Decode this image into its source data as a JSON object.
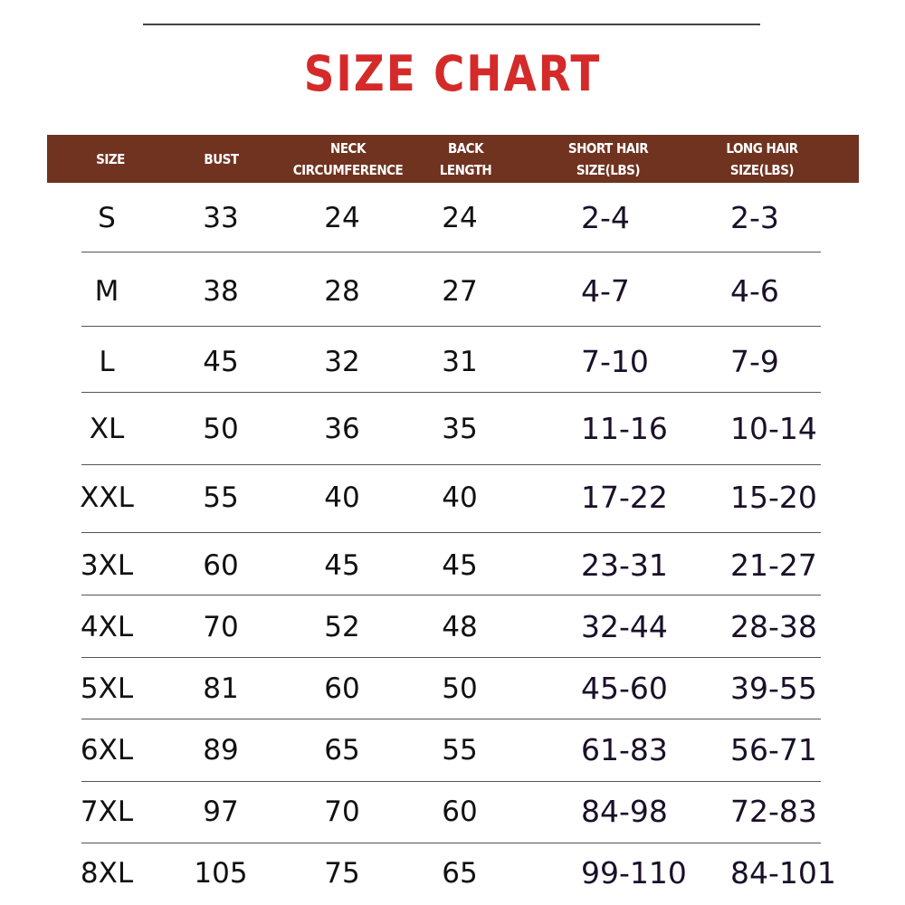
{
  "title": "SIZE CHART",
  "colors": {
    "title": "#d42a2a",
    "header_bg": "#6f3320"
  },
  "headers": [
    "SIZE",
    "BUST",
    "NECK\nCIRCUMFERENCE",
    "BACK\nLENGTH",
    "SHORT HAIR\nSIZE(LBS)",
    "LONG HAIR\nSIZE(LBS)"
  ],
  "rows": [
    [
      "S",
      "33",
      "24",
      "24",
      "2-4",
      "2-3"
    ],
    [
      "M",
      "38",
      "28",
      "27",
      "4-7",
      "4-6"
    ],
    [
      "L",
      "45",
      "32",
      "31",
      "7-10",
      "7-9"
    ],
    [
      "XL",
      "50",
      "36",
      "35",
      "11-16",
      "10-14"
    ],
    [
      "XXL",
      "55",
      "40",
      "40",
      "17-22",
      "15-20"
    ],
    [
      "3XL",
      "60",
      "45",
      "45",
      "23-31",
      "21-27"
    ],
    [
      "4XL",
      "70",
      "52",
      "48",
      "32-44",
      "28-38"
    ],
    [
      "5XL",
      "81",
      "60",
      "50",
      "45-60",
      "39-55"
    ],
    [
      "6XL",
      "89",
      "65",
      "55",
      "61-83",
      "56-71"
    ],
    [
      "7XL",
      "97",
      "70",
      "60",
      "84-98",
      "72-83"
    ],
    [
      "8XL",
      "105",
      "75",
      "65",
      "99-110",
      "84-101"
    ]
  ]
}
